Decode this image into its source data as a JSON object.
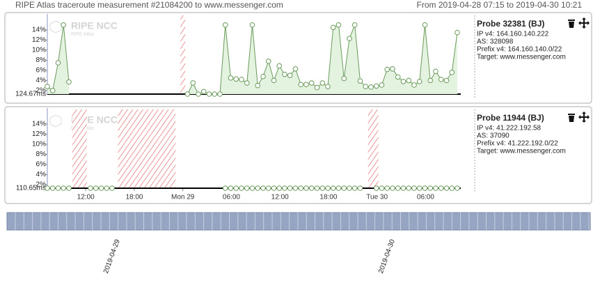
{
  "header": {
    "title": "RIPE Atlas traceroute measurement #21084200 to www.messenger.com",
    "range": "From 2019-04-28 07:15 to 2019-04-30 10:21"
  },
  "chart_data": [
    {
      "type": "line",
      "watermark": "RIPE NCC",
      "watermark_sub": "RIPE Atlas",
      "probe": {
        "title": "Probe 32381 (BJ)",
        "lines": [
          "IP v4: 164.160.140.222",
          "AS: 328098",
          "Prefix v4: 164.160.140.0/22",
          "Target: www.messenger.com"
        ]
      },
      "xlim": [
        "2019-04-28 07:15",
        "2019-04-30 10:21"
      ],
      "ylim": [
        1.3,
        15.8
      ],
      "yticks": [
        {
          "value": 1.3,
          "label": "124.67ms"
        },
        {
          "value": 2,
          "label": "2%"
        },
        {
          "value": 4,
          "label": "4%"
        },
        {
          "value": 6,
          "label": "6%"
        },
        {
          "value": 8,
          "label": "8%"
        },
        {
          "value": 10,
          "label": "10%"
        },
        {
          "value": 12,
          "label": "12%"
        },
        {
          "value": 14,
          "label": "14%"
        }
      ],
      "x": [
        "2019-04-28 07:15",
        "2019-04-28 07:55",
        "2019-04-28 08:35",
        "2019-04-28 09:15",
        "2019-04-28 09:55",
        "2019-04-28 10:35",
        "2019-04-28 11:15",
        "2019-04-28 11:55",
        "2019-04-28 12:35",
        "2019-04-28 13:15",
        "2019-04-28 13:55",
        "2019-04-28 14:35",
        "2019-04-28 15:15",
        "2019-04-28 15:55",
        "2019-04-28 16:35",
        "2019-04-28 17:15",
        "2019-04-28 17:55",
        "2019-04-28 18:35",
        "2019-04-28 19:15",
        "2019-04-28 19:55",
        "2019-04-28 20:35",
        "2019-04-28 21:15",
        "2019-04-28 21:55",
        "2019-04-28 22:35",
        "2019-04-28 23:15",
        "2019-04-28 23:55",
        "2019-04-29 00:35",
        "2019-04-29 01:15",
        "2019-04-29 01:55",
        "2019-04-29 02:35",
        "2019-04-29 03:15",
        "2019-04-29 03:55",
        "2019-04-29 04:35",
        "2019-04-29 05:15",
        "2019-04-29 05:55",
        "2019-04-29 06:35",
        "2019-04-29 07:15",
        "2019-04-29 07:55",
        "2019-04-29 08:35",
        "2019-04-29 09:15",
        "2019-04-29 09:55",
        "2019-04-29 10:35",
        "2019-04-29 11:15",
        "2019-04-29 11:55",
        "2019-04-29 12:35",
        "2019-04-29 13:15",
        "2019-04-29 13:55",
        "2019-04-29 14:35",
        "2019-04-29 15:15",
        "2019-04-29 15:55",
        "2019-04-29 16:35",
        "2019-04-29 17:15",
        "2019-04-29 17:55",
        "2019-04-29 18:35",
        "2019-04-29 19:15",
        "2019-04-29 19:55",
        "2019-04-29 20:35",
        "2019-04-29 21:15",
        "2019-04-29 21:55",
        "2019-04-29 22:35",
        "2019-04-29 23:15",
        "2019-04-29 23:55",
        "2019-04-30 00:35",
        "2019-04-30 01:15",
        "2019-04-30 01:55",
        "2019-04-30 02:35",
        "2019-04-30 03:15",
        "2019-04-30 03:55",
        "2019-04-30 04:35",
        "2019-04-30 05:15",
        "2019-04-30 05:55",
        "2019-04-30 06:35",
        "2019-04-30 07:15",
        "2019-04-30 07:55",
        "2019-04-30 08:35",
        "2019-04-30 09:15",
        "2019-04-30 09:55"
      ],
      "series": [
        {
          "color": "#6a9a5a",
          "fill": "#e4f3e0",
          "values": [
            2.8,
            2.0,
            7.5,
            15,
            3.7,
            null,
            null,
            null,
            null,
            null,
            null,
            null,
            null,
            null,
            null,
            null,
            null,
            null,
            null,
            null,
            null,
            null,
            null,
            null,
            null,
            null,
            1.3,
            3.5,
            1.3,
            1.8,
            1.3,
            1.3,
            1.3,
            15,
            4.5,
            4.3,
            4.2,
            3.5,
            15,
            3,
            4.8,
            7.8,
            4,
            6.9,
            5.2,
            5,
            6.3,
            3.2,
            3.2,
            3.5,
            2.6,
            3.5,
            2.8,
            14.5,
            15,
            4.4,
            12.3,
            15,
            3.9,
            2.8,
            2.7,
            2.9,
            3.1,
            6.2,
            6.3,
            4.7,
            3.8,
            4,
            3.1,
            3.8,
            15,
            4,
            5.8,
            4.2,
            4,
            5.6,
            13.5
          ]
        }
      ],
      "loss_periods": [
        [
          "2019-04-28 23:42",
          "2019-04-29 00:18"
        ]
      ]
    },
    {
      "type": "line",
      "watermark": "RIPE NCC",
      "watermark_sub": "RIPE Atlas",
      "probe": {
        "title": "Probe 11944 (BJ)",
        "lines": [
          "IP v4: 41.222.192.58",
          "AS: 37090",
          "Prefix v4: 41.222.192.0/22",
          "Target: www.messenger.com"
        ]
      },
      "xlim": [
        "2019-04-28 07:15",
        "2019-04-30 10:21"
      ],
      "ylim": [
        1.3,
        15.8
      ],
      "yticks": [
        {
          "value": 1.3,
          "label": "110.65ms"
        },
        {
          "value": 2,
          "label": "2%"
        },
        {
          "value": 4,
          "label": "4%"
        },
        {
          "value": 6,
          "label": "6%"
        },
        {
          "value": 8,
          "label": "8%"
        },
        {
          "value": 10,
          "label": "10%"
        },
        {
          "value": 12,
          "label": "12%"
        },
        {
          "value": 14,
          "label": "14%"
        }
      ],
      "xticks": [
        {
          "value": "2019-04-28 12:00",
          "label": "12:00"
        },
        {
          "value": "2019-04-28 18:00",
          "label": "18:00"
        },
        {
          "value": "2019-04-29 00:00",
          "label": "Mon 29"
        },
        {
          "value": "2019-04-29 06:00",
          "label": "06:00"
        },
        {
          "value": "2019-04-29 12:00",
          "label": "12:00"
        },
        {
          "value": "2019-04-29 18:00",
          "label": "18:00"
        },
        {
          "value": "2019-04-30 00:00",
          "label": "Tue 30"
        },
        {
          "value": "2019-04-30 06:00",
          "label": "06:00"
        }
      ],
      "x": [
        "2019-04-28 07:15",
        "2019-04-28 07:55",
        "2019-04-28 08:35",
        "2019-04-28 09:15",
        "2019-04-28 09:55",
        "2019-04-28 10:35",
        "2019-04-28 11:15",
        "2019-04-28 11:55",
        "2019-04-28 12:35",
        "2019-04-28 13:15",
        "2019-04-28 13:55",
        "2019-04-28 14:35",
        "2019-04-28 15:15",
        "2019-04-28 15:55",
        "2019-04-28 16:35",
        "2019-04-28 17:15",
        "2019-04-28 17:55",
        "2019-04-28 18:35",
        "2019-04-28 19:15",
        "2019-04-28 19:55",
        "2019-04-28 20:35",
        "2019-04-28 21:15",
        "2019-04-28 21:55",
        "2019-04-28 22:35",
        "2019-04-28 23:15",
        "2019-04-28 23:55",
        "2019-04-29 00:35",
        "2019-04-29 01:15",
        "2019-04-29 01:55",
        "2019-04-29 02:35",
        "2019-04-29 03:15",
        "2019-04-29 03:55",
        "2019-04-29 04:35",
        "2019-04-29 05:15",
        "2019-04-29 05:55",
        "2019-04-29 06:35",
        "2019-04-29 07:15",
        "2019-04-29 07:55",
        "2019-04-29 08:35",
        "2019-04-29 09:15",
        "2019-04-29 09:55",
        "2019-04-29 10:35",
        "2019-04-29 11:15",
        "2019-04-29 11:55",
        "2019-04-29 12:35",
        "2019-04-29 13:15",
        "2019-04-29 13:55",
        "2019-04-29 14:35",
        "2019-04-29 15:15",
        "2019-04-29 15:55",
        "2019-04-29 16:35",
        "2019-04-29 17:15",
        "2019-04-29 17:55",
        "2019-04-29 18:35",
        "2019-04-29 19:15",
        "2019-04-29 19:55",
        "2019-04-29 20:35",
        "2019-04-29 21:15",
        "2019-04-29 21:55",
        "2019-04-29 22:35",
        "2019-04-29 23:15",
        "2019-04-29 23:55",
        "2019-04-30 00:35",
        "2019-04-30 01:15",
        "2019-04-30 01:55",
        "2019-04-30 02:35",
        "2019-04-30 03:15",
        "2019-04-30 03:55",
        "2019-04-30 04:35",
        "2019-04-30 05:15",
        "2019-04-30 05:55",
        "2019-04-30 06:35",
        "2019-04-30 07:15",
        "2019-04-30 07:55",
        "2019-04-30 08:35",
        "2019-04-30 09:15",
        "2019-04-30 09:55"
      ],
      "series": [
        {
          "color": "#6a9a5a",
          "fill": "#e4f3e0",
          "values": [
            1.3,
            1.3,
            1.3,
            1.3,
            1.3,
            null,
            null,
            null,
            1.3,
            1.3,
            1.3,
            1.3,
            1.3,
            null,
            null,
            null,
            null,
            null,
            null,
            null,
            null,
            null,
            null,
            null,
            null,
            null,
            null,
            null,
            null,
            null,
            null,
            null,
            null,
            1.3,
            1.3,
            1.3,
            1.3,
            1.3,
            1.3,
            1.3,
            1.3,
            1.3,
            1.3,
            1.3,
            1.3,
            1.3,
            1.3,
            1.3,
            1.3,
            1.3,
            1.3,
            1.3,
            1.3,
            1.3,
            1.3,
            1.3,
            1.3,
            1.3,
            1.3,
            null,
            null,
            1.3,
            1.3,
            1.3,
            1.3,
            1.3,
            1.3,
            1.3,
            1.3,
            1.3,
            1.3,
            1.3,
            1.3,
            1.3,
            1.3,
            1.3,
            1.3
          ]
        }
      ],
      "loss_periods": [
        [
          "2019-04-28 10:20",
          "2019-04-28 12:08"
        ],
        [
          "2019-04-28 15:59",
          "2019-04-28 23:06"
        ],
        [
          "2019-04-29 22:53",
          "2019-04-30 00:10"
        ]
      ]
    }
  ],
  "timeline": {
    "labels": [
      "2019-04-29",
      "2019-04-30"
    ]
  }
}
